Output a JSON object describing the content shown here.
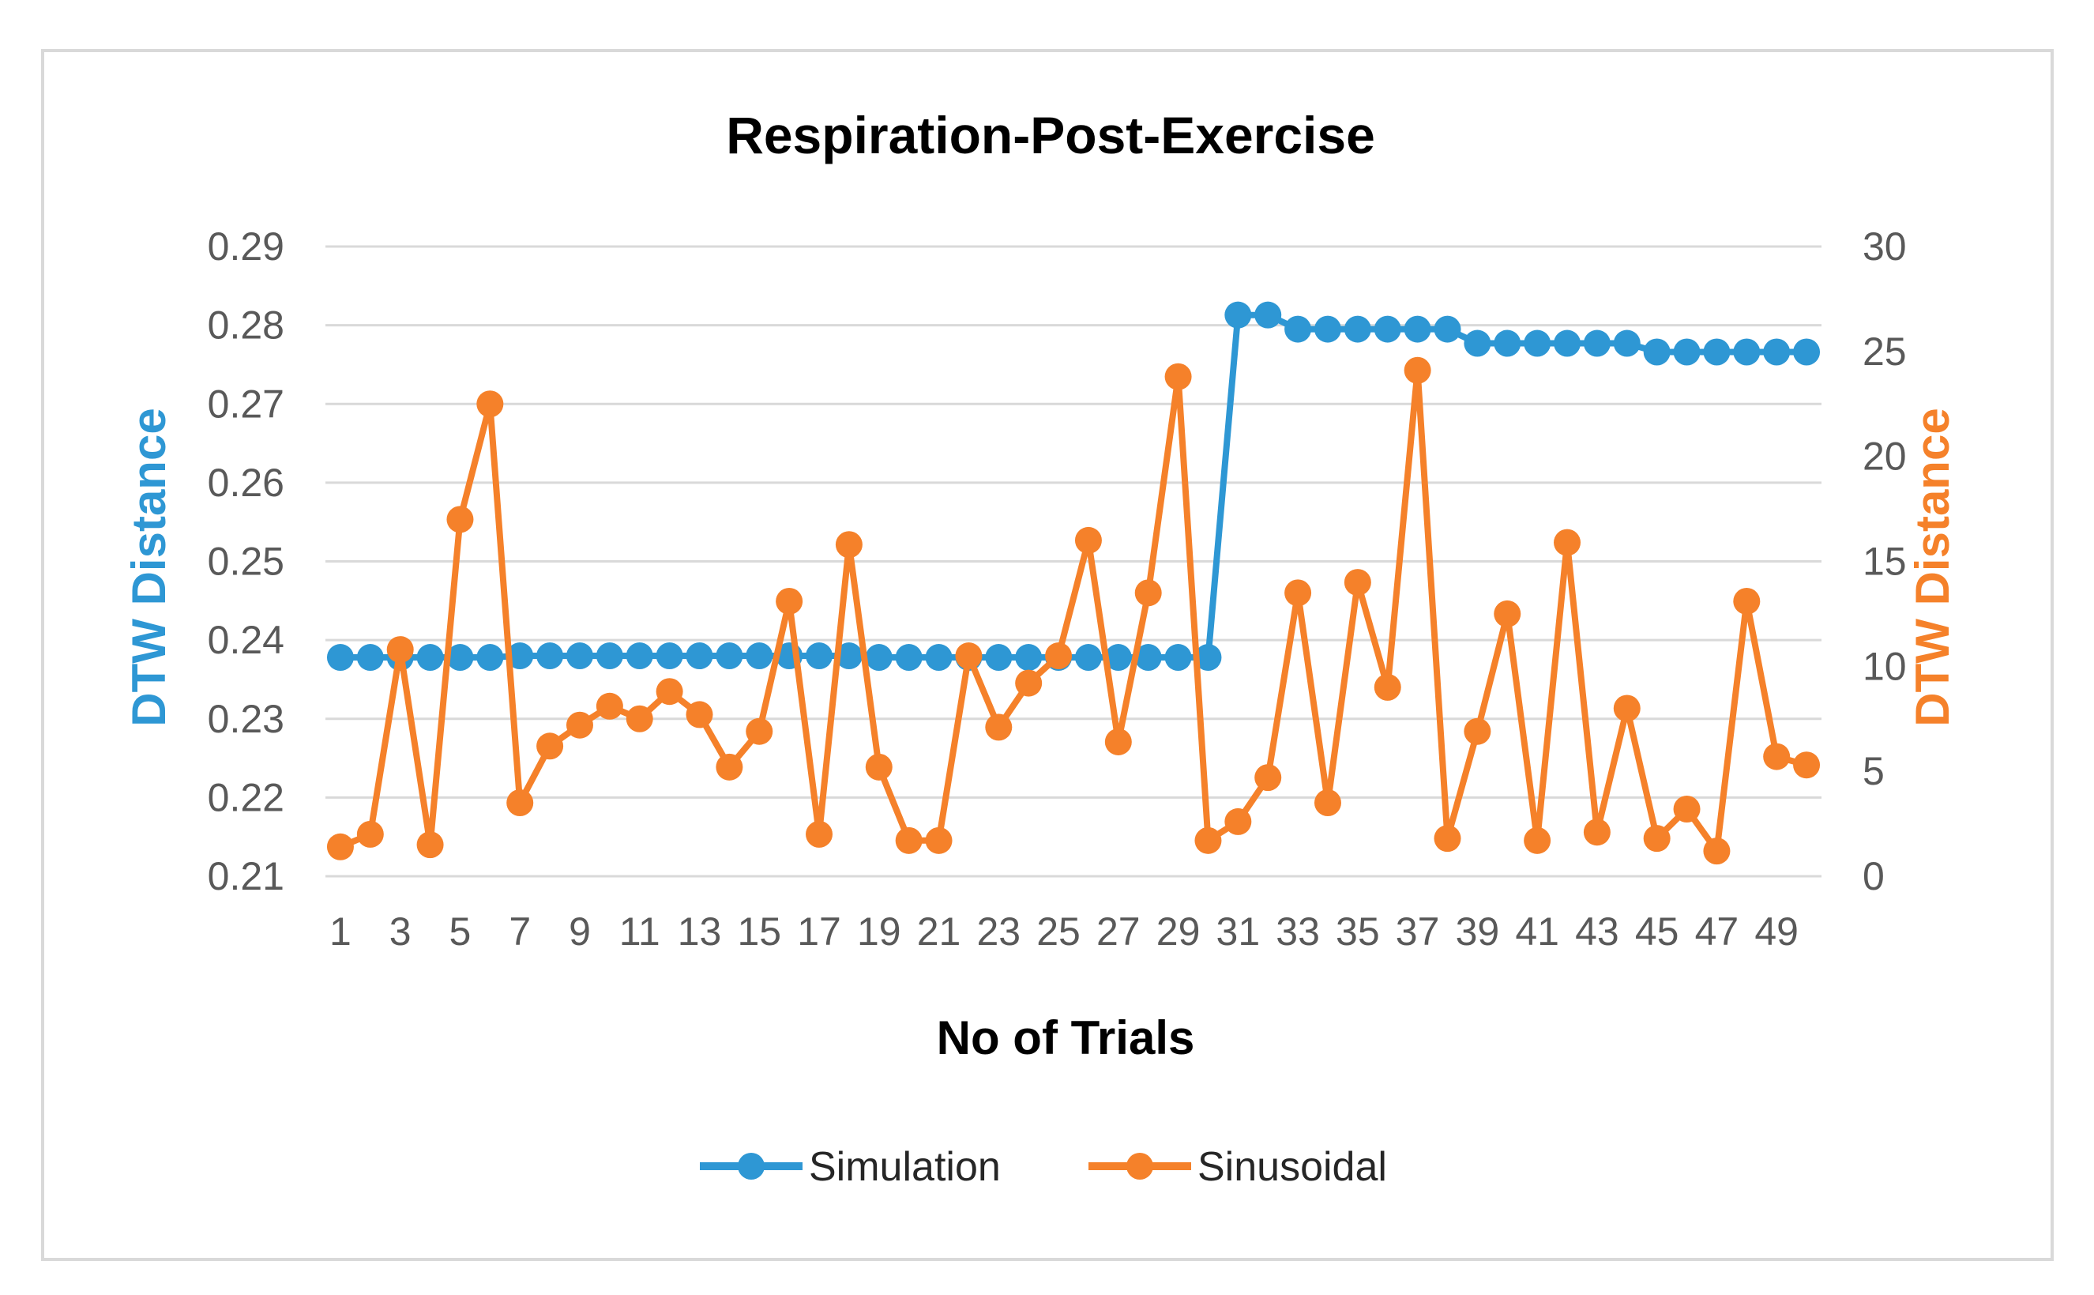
{
  "chart_data": {
    "type": "line",
    "title": "Respiration-Post-Exercise",
    "xlabel": "No of Trials",
    "ylabel_left": "DTW Distance",
    "ylabel_right": "DTW Distance",
    "ylim_left": [
      0.21,
      0.29
    ],
    "ylim_right": [
      0,
      30
    ],
    "yticks_left": [
      "0.21",
      "0.22",
      "0.23",
      "0.24",
      "0.25",
      "0.26",
      "0.27",
      "0.28",
      "0.29"
    ],
    "yticks_right": [
      "0",
      "5",
      "10",
      "15",
      "20",
      "25",
      "30"
    ],
    "x": [
      1,
      2,
      3,
      4,
      5,
      6,
      7,
      8,
      9,
      10,
      11,
      12,
      13,
      14,
      15,
      16,
      17,
      18,
      19,
      20,
      21,
      22,
      23,
      24,
      25,
      26,
      27,
      28,
      29,
      30,
      31,
      32,
      33,
      34,
      35,
      36,
      37,
      38,
      39,
      40,
      41,
      42,
      43,
      44,
      45,
      46,
      47,
      48,
      49,
      50
    ],
    "xtick_labels": [
      "1",
      "3",
      "5",
      "7",
      "9",
      "11",
      "13",
      "15",
      "17",
      "19",
      "21",
      "23",
      "25",
      "27",
      "29",
      "31",
      "33",
      "35",
      "37",
      "39",
      "41",
      "43",
      "45",
      "47",
      "49"
    ],
    "grid": true,
    "legend_position": "bottom",
    "series": [
      {
        "name": "Simulation",
        "axis": "left",
        "color": "#2e97d4",
        "values": [
          0.2378,
          0.2378,
          0.2378,
          0.2378,
          0.2378,
          0.2378,
          0.238,
          0.238,
          0.238,
          0.238,
          0.238,
          0.238,
          0.238,
          0.238,
          0.238,
          0.238,
          0.238,
          0.238,
          0.2378,
          0.2378,
          0.2378,
          0.2378,
          0.2378,
          0.2378,
          0.2378,
          0.2378,
          0.2378,
          0.2378,
          0.2378,
          0.2378,
          0.2813,
          0.2813,
          0.2795,
          0.2795,
          0.2795,
          0.2795,
          0.2795,
          0.2795,
          0.2777,
          0.2777,
          0.2777,
          0.2777,
          0.2777,
          0.2777,
          0.2766,
          0.2766,
          0.2766,
          0.2766,
          0.2766,
          0.2766
        ]
      },
      {
        "name": "Sinusoidal",
        "axis": "right",
        "color": "#f5812a",
        "values": [
          1.4,
          2.0,
          10.8,
          1.5,
          17.0,
          22.5,
          3.5,
          6.2,
          7.2,
          8.1,
          7.5,
          8.8,
          7.7,
          5.2,
          6.9,
          13.1,
          2.0,
          15.8,
          5.2,
          1.7,
          1.7,
          10.5,
          7.1,
          9.2,
          10.5,
          16.0,
          6.4,
          13.5,
          23.8,
          1.7,
          2.6,
          4.7,
          13.5,
          3.5,
          14.0,
          9.0,
          24.1,
          1.8,
          6.9,
          12.5,
          1.7,
          15.9,
          2.1,
          8.0,
          1.8,
          3.2,
          1.2,
          13.1,
          5.7,
          5.3
        ]
      }
    ]
  }
}
